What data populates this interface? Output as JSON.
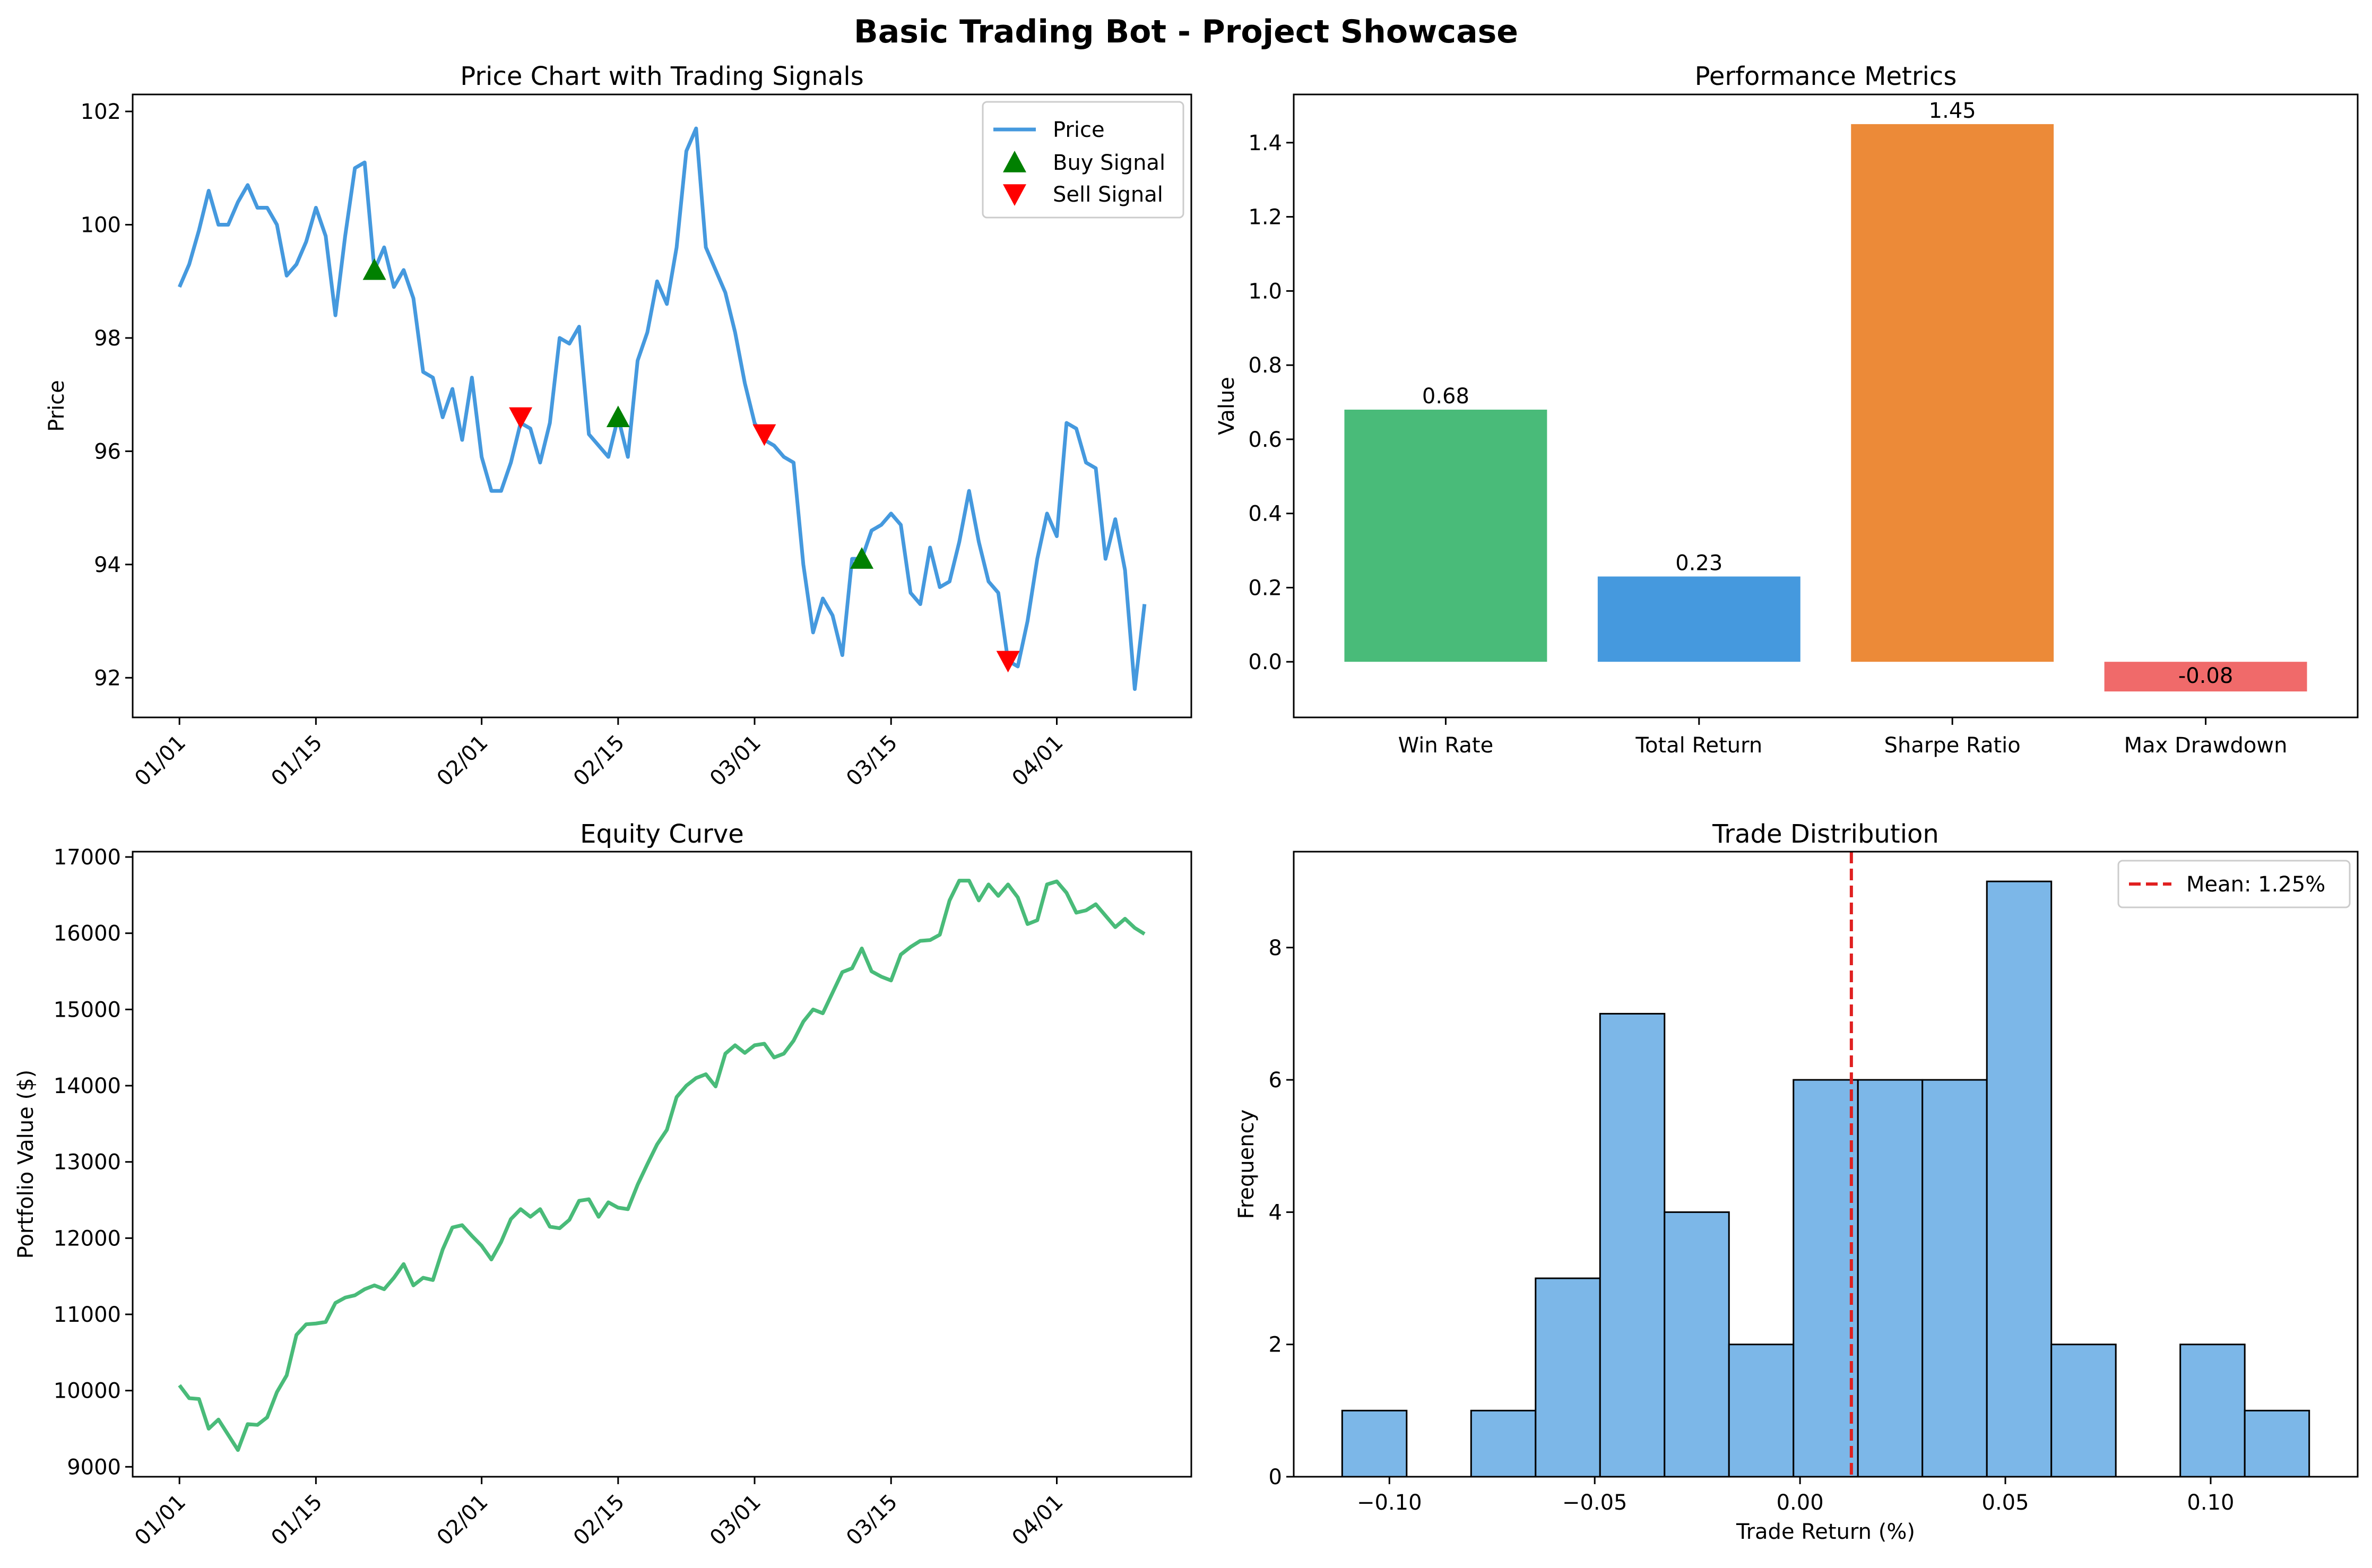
{
  "figure": {
    "title": "Basic Trading Bot - Project Showcase",
    "colors": {
      "price_line": "#4599DE",
      "buy_marker": "#008000",
      "sell_marker": "#FF0000",
      "equity_line": "#49BB79",
      "bar_win_rate": "#49BB79",
      "bar_total_return": "#4599DE",
      "bar_sharpe": "#EC8A38",
      "bar_drawdown": "#F06A6A",
      "hist_fill": "#7CB7E8",
      "mean_line": "#E02020"
    }
  },
  "chart_data": [
    {
      "type": "line",
      "title": "Price Chart with Trading Signals",
      "xlabel": "",
      "ylabel": "Price",
      "x_axis": "date",
      "start_date": "01/01",
      "xticks": [
        {
          "label": "01/01",
          "x": 0
        },
        {
          "label": "01/15",
          "x": 14
        },
        {
          "label": "02/01",
          "x": 31
        },
        {
          "label": "02/15",
          "x": 45
        },
        {
          "label": "03/01",
          "x": 59
        },
        {
          "label": "03/15",
          "x": 73
        },
        {
          "label": "04/01",
          "x": 90
        }
      ],
      "ylim": [
        91.3,
        102.3
      ],
      "yticks": [
        92,
        94,
        96,
        98,
        100,
        102
      ],
      "legend": {
        "placement": "top-right",
        "entries": [
          "Price",
          "Buy Signal",
          "Sell Signal"
        ]
      },
      "series": [
        {
          "name": "Price",
          "values": [
            98.9,
            99.3,
            99.9,
            100.6,
            100.0,
            100.0,
            100.4,
            100.7,
            100.3,
            100.3,
            100.0,
            99.1,
            99.3,
            99.7,
            100.3,
            99.8,
            98.4,
            99.8,
            101.0,
            101.1,
            99.2,
            99.6,
            98.9,
            99.2,
            98.7,
            97.4,
            97.3,
            96.6,
            97.1,
            96.2,
            97.3,
            95.9,
            95.3,
            95.3,
            95.8,
            96.5,
            96.4,
            95.8,
            96.5,
            98.0,
            97.9,
            98.2,
            96.3,
            96.1,
            95.9,
            96.6,
            95.9,
            97.6,
            98.1,
            99.0,
            98.6,
            99.6,
            101.3,
            101.7,
            99.6,
            99.2,
            98.8,
            98.1,
            97.2,
            96.5,
            96.2,
            96.1,
            95.9,
            95.8,
            94.0,
            92.8,
            93.4,
            93.1,
            92.4,
            94.1,
            94.1,
            94.6,
            94.7,
            94.9,
            94.7,
            93.5,
            93.3,
            94.3,
            93.6,
            93.7,
            94.4,
            95.3,
            94.4,
            93.7,
            93.5,
            92.3,
            92.2,
            93.0,
            94.1,
            94.9,
            94.5,
            96.5,
            96.4,
            95.8,
            95.7,
            94.1,
            94.8,
            93.9,
            91.8,
            93.3
          ]
        }
      ],
      "signals": {
        "buy": [
          {
            "x": 20,
            "y": 99.2
          },
          {
            "x": 45,
            "y": 96.6
          },
          {
            "x": 70,
            "y": 94.1
          }
        ],
        "sell": [
          {
            "x": 35,
            "y": 96.6
          },
          {
            "x": 60,
            "y": 96.3
          },
          {
            "x": 85,
            "y": 92.3
          }
        ]
      }
    },
    {
      "type": "bar",
      "title": "Performance Metrics",
      "xlabel": "",
      "ylabel": "Value",
      "categories": [
        "Win Rate",
        "Total Return",
        "Sharpe Ratio",
        "Max Drawdown"
      ],
      "values": [
        0.68,
        0.23,
        1.45,
        -0.08
      ],
      "value_labels": [
        "0.68",
        "0.23",
        "1.45",
        "-0.08"
      ],
      "ylim": [
        -0.15,
        1.53
      ],
      "yticks": [
        0.0,
        0.2,
        0.4,
        0.6,
        0.8,
        1.0,
        1.2,
        1.4
      ],
      "ytick_labels": [
        "0.0",
        "0.2",
        "0.4",
        "0.6",
        "0.8",
        "1.0",
        "1.2",
        "1.4"
      ]
    },
    {
      "type": "line",
      "title": "Equity Curve",
      "xlabel": "",
      "ylabel": "Portfolio Value ($)",
      "x_axis": "date",
      "xticks": [
        {
          "label": "01/01",
          "x": 0
        },
        {
          "label": "01/15",
          "x": 14
        },
        {
          "label": "02/01",
          "x": 31
        },
        {
          "label": "02/15",
          "x": 45
        },
        {
          "label": "03/01",
          "x": 59
        },
        {
          "label": "03/15",
          "x": 73
        },
        {
          "label": "04/01",
          "x": 90
        }
      ],
      "ylim": [
        8870,
        17070
      ],
      "yticks": [
        9000,
        10000,
        11000,
        12000,
        13000,
        14000,
        15000,
        16000,
        17000
      ],
      "series": [
        {
          "name": "Portfolio Value",
          "values": [
            10070,
            9900,
            9890,
            9500,
            9620,
            9420,
            9220,
            9560,
            9550,
            9650,
            9980,
            10200,
            10730,
            10870,
            10880,
            10900,
            11150,
            11220,
            11250,
            11330,
            11380,
            11330,
            11480,
            11660,
            11380,
            11480,
            11450,
            11850,
            12140,
            12170,
            12030,
            11900,
            11720,
            11950,
            12250,
            12380,
            12280,
            12380,
            12150,
            12130,
            12240,
            12490,
            12510,
            12280,
            12470,
            12400,
            12380,
            12700,
            12970,
            13230,
            13420,
            13850,
            14000,
            14100,
            14150,
            13990,
            14420,
            14530,
            14430,
            14530,
            14550,
            14370,
            14420,
            14590,
            14840,
            15000,
            14950,
            15220,
            15490,
            15540,
            15800,
            15500,
            15430,
            15380,
            15720,
            15820,
            15900,
            15910,
            15980,
            16430,
            16690,
            16690,
            16430,
            16640,
            16490,
            16640,
            16470,
            16120,
            16170,
            16640,
            16680,
            16530,
            16270,
            16300,
            16380,
            16230,
            16080,
            16190,
            16070,
            15990
          ]
        }
      ]
    },
    {
      "type": "bar",
      "title": "Trade Distribution",
      "xlabel": "Trade Return (%)",
      "ylabel": "Frequency",
      "bin_edges": [
        -0.1115,
        -0.0958,
        -0.0801,
        -0.0644,
        -0.0487,
        -0.033,
        -0.0173,
        -0.0016,
        0.0141,
        0.0298,
        0.0455,
        0.0612,
        0.0769,
        0.0926,
        0.1083,
        0.124
      ],
      "values": [
        1,
        0,
        1,
        3,
        7,
        4,
        2,
        6,
        6,
        6,
        9,
        2,
        0,
        2,
        1
      ],
      "xlim": [
        -0.1233,
        0.1358
      ],
      "xticks": [
        -0.1,
        -0.05,
        0.0,
        0.05,
        0.1
      ],
      "xtick_labels": [
        "−0.10",
        "−0.05",
        "0.00",
        "0.05",
        "0.10"
      ],
      "ylim": [
        0,
        9.45
      ],
      "yticks": [
        0,
        2,
        4,
        6,
        8
      ],
      "ytick_labels": [
        "0",
        "2",
        "4",
        "6",
        "8"
      ],
      "mean": 0.0125,
      "legend": {
        "placement": "top-right",
        "entries": [
          "Mean: 1.25%"
        ]
      }
    }
  ]
}
